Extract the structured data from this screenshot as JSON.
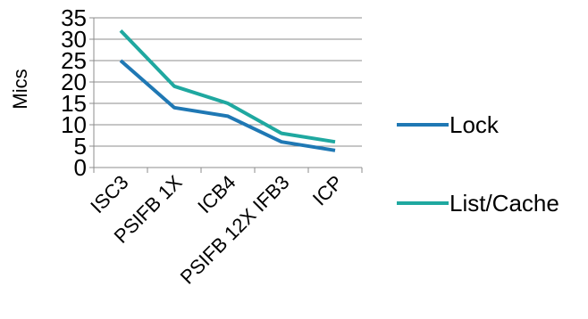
{
  "chart_data": {
    "type": "line",
    "categories": [
      "ISC3",
      "PSIFB 1X",
      "ICB4",
      "PSIFB 12X IFB3",
      "ICP"
    ],
    "series": [
      {
        "name": "Lock",
        "values": [
          25,
          14,
          12,
          6,
          4
        ],
        "color": "#1f78b4"
      },
      {
        "name": "List/Cache",
        "values": [
          32,
          19,
          15,
          8,
          6
        ],
        "color": "#1fa8a0"
      }
    ],
    "ylabel": "Mics",
    "ylim": [
      0,
      35
    ],
    "yticks": [
      0,
      5,
      10,
      15,
      20,
      25,
      30,
      35
    ],
    "grid": true,
    "legend": "right"
  }
}
